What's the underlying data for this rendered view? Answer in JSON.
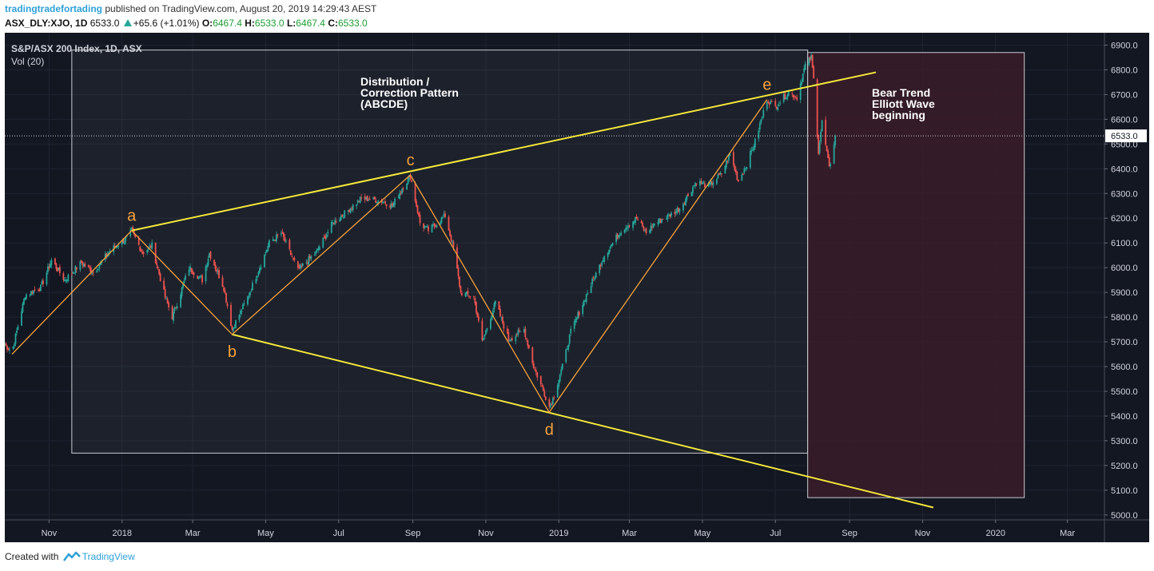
{
  "header": {
    "author": "tradingtradefortading",
    "published": "published on TradingView.com, August 20, 2019 14:29:43 AEST",
    "symbol": "ASX_DLY:XJO, 1D",
    "last": "6533.0",
    "change": "+65.6 (+1.01%)",
    "o_label": "O:",
    "o_value": "6467.4",
    "h_label": "H:",
    "h_value": "6533.0",
    "l_label": "L:",
    "l_value": "6467.4",
    "c_label": "C:",
    "c_value": "6533.0"
  },
  "footer": {
    "created_with": "Created with",
    "brand": "TradingView"
  },
  "chart_data": {
    "type": "candlestick",
    "title": "S&P/ASX 200 Index, 1D, ASX",
    "subtitle": "Vol (20)",
    "ylim": [
      4980,
      6950
    ],
    "yticks": [
      5000,
      5100,
      5200,
      5300,
      5400,
      5500,
      5600,
      5700,
      5800,
      5900,
      6000,
      6100,
      6200,
      6300,
      6400,
      6500,
      6600,
      6700,
      6800,
      6900
    ],
    "ytick_labels": [
      "5000.0",
      "5100.0",
      "5200.0",
      "5300.0",
      "5400.0",
      "5500.0",
      "5600.0",
      "5700.0",
      "5800.0",
      "5900.0",
      "6000.0",
      "6100.0",
      "6200.0",
      "6300.0",
      "6400.0",
      "6500.0",
      "6600.0",
      "6700.0",
      "6800.0",
      "6900.0"
    ],
    "xlim": [
      "2017-09-25",
      "2020-04-01"
    ],
    "xticks": [
      {
        "date": "2017-11-01",
        "label": "Nov"
      },
      {
        "date": "2018-01-01",
        "label": "2018"
      },
      {
        "date": "2018-03-01",
        "label": "Mar"
      },
      {
        "date": "2018-05-01",
        "label": "May"
      },
      {
        "date": "2018-07-01",
        "label": "Jul"
      },
      {
        "date": "2018-09-01",
        "label": "Sep"
      },
      {
        "date": "2018-11-01",
        "label": "Nov"
      },
      {
        "date": "2019-01-01",
        "label": "2019"
      },
      {
        "date": "2019-03-01",
        "label": "Mar"
      },
      {
        "date": "2019-05-01",
        "label": "May"
      },
      {
        "date": "2019-07-01",
        "label": "Jul"
      },
      {
        "date": "2019-09-01",
        "label": "Sep"
      },
      {
        "date": "2019-11-01",
        "label": "Nov"
      },
      {
        "date": "2020-01-01",
        "label": "2020"
      },
      {
        "date": "2020-03-01",
        "label": "Mar"
      }
    ],
    "path": [
      [
        "2017-09-25",
        5690
      ],
      [
        "2017-10-01",
        5660
      ],
      [
        "2017-10-12",
        5890
      ],
      [
        "2017-10-25",
        5920
      ],
      [
        "2017-11-03",
        6030
      ],
      [
        "2017-11-14",
        5950
      ],
      [
        "2017-11-28",
        6020
      ],
      [
        "2017-12-08",
        5980
      ],
      [
        "2017-12-22",
        6070
      ],
      [
        "2018-01-05",
        6120
      ],
      [
        "2018-01-09",
        6150
      ],
      [
        "2018-01-18",
        6060
      ],
      [
        "2018-01-26",
        6090
      ],
      [
        "2018-02-06",
        5880
      ],
      [
        "2018-02-12",
        5800
      ],
      [
        "2018-02-26",
        6000
      ],
      [
        "2018-03-09",
        5950
      ],
      [
        "2018-03-15",
        6060
      ],
      [
        "2018-03-27",
        5920
      ],
      [
        "2018-04-03",
        5750
      ],
      [
        "2018-04-16",
        5880
      ],
      [
        "2018-05-04",
        6100
      ],
      [
        "2018-05-14",
        6140
      ],
      [
        "2018-05-28",
        5990
      ],
      [
        "2018-06-12",
        6060
      ],
      [
        "2018-06-26",
        6180
      ],
      [
        "2018-07-06",
        6220
      ],
      [
        "2018-07-20",
        6280
      ],
      [
        "2018-08-06",
        6270
      ],
      [
        "2018-08-15",
        6250
      ],
      [
        "2018-08-24",
        6330
      ],
      [
        "2018-08-30",
        6370
      ],
      [
        "2018-09-07",
        6180
      ],
      [
        "2018-09-14",
        6150
      ],
      [
        "2018-09-28",
        6210
      ],
      [
        "2018-10-05",
        6080
      ],
      [
        "2018-10-11",
        5900
      ],
      [
        "2018-10-22",
        5880
      ],
      [
        "2018-10-29",
        5700
      ],
      [
        "2018-11-09",
        5860
      ],
      [
        "2018-11-20",
        5710
      ],
      [
        "2018-12-03",
        5750
      ],
      [
        "2018-12-11",
        5600
      ],
      [
        "2018-12-24",
        5440
      ],
      [
        "2018-12-27",
        5470
      ],
      [
        "2019-01-04",
        5600
      ],
      [
        "2019-01-11",
        5740
      ],
      [
        "2019-01-25",
        5900
      ],
      [
        "2019-02-08",
        6050
      ],
      [
        "2019-02-22",
        6150
      ],
      [
        "2019-03-07",
        6200
      ],
      [
        "2019-03-15",
        6140
      ],
      [
        "2019-03-22",
        6180
      ],
      [
        "2019-04-03",
        6210
      ],
      [
        "2019-04-12",
        6240
      ],
      [
        "2019-04-26",
        6350
      ],
      [
        "2019-05-06",
        6330
      ],
      [
        "2019-05-17",
        6380
      ],
      [
        "2019-05-24",
        6460
      ],
      [
        "2019-05-31",
        6350
      ],
      [
        "2019-06-07",
        6420
      ],
      [
        "2019-06-14",
        6510
      ],
      [
        "2019-06-24",
        6680
      ],
      [
        "2019-07-01",
        6650
      ],
      [
        "2019-07-12",
        6710
      ],
      [
        "2019-07-19",
        6690
      ],
      [
        "2019-07-26",
        6820
      ],
      [
        "2019-07-31",
        6850
      ],
      [
        "2019-08-02",
        6760
      ],
      [
        "2019-08-06",
        6470
      ],
      [
        "2019-08-09",
        6590
      ],
      [
        "2019-08-15",
        6400
      ],
      [
        "2019-08-20",
        6533
      ]
    ],
    "last_price": {
      "value": 6533.0,
      "label": "6533.0"
    },
    "annotations": {
      "pattern_label": [
        "Distribution /",
        "Correction Pattern",
        "(ABCDE)"
      ],
      "bear_label": [
        "Bear Trend",
        "Elliott Wave",
        "beginning"
      ],
      "points": [
        {
          "label": "a",
          "date": "2018-01-09",
          "value": 6150
        },
        {
          "label": "b",
          "date": "2018-04-03",
          "value": 5730
        },
        {
          "label": "c",
          "date": "2018-08-30",
          "value": 6375
        },
        {
          "label": "d",
          "date": "2018-12-24",
          "value": 5415
        },
        {
          "label": "e",
          "date": "2019-06-24",
          "value": 6680
        }
      ],
      "zigzag": [
        [
          "2017-10-01",
          5650
        ],
        [
          "2018-01-09",
          6150
        ],
        [
          "2018-04-03",
          5730
        ],
        [
          "2018-08-30",
          6375
        ],
        [
          "2018-12-24",
          5415
        ],
        [
          "2019-06-24",
          6680
        ]
      ],
      "upper_trendline": [
        [
          "2018-01-09",
          6150
        ],
        [
          "2019-09-23",
          6790
        ]
      ],
      "lower_trendline": [
        [
          "2018-04-03",
          5730
        ],
        [
          "2019-11-10",
          5030
        ]
      ],
      "pattern_box": {
        "start": "2017-11-20",
        "end": "2019-07-28",
        "top": 6880,
        "bottom": 5250
      },
      "bear_box": {
        "start": "2019-07-28",
        "end": "2020-01-25",
        "top": 6870,
        "bottom": 5070
      }
    },
    "colors": {
      "background": "#131722",
      "up": "#26a69a",
      "down": "#ef5350",
      "trendline": "#f5e83b",
      "zigzag": "#f7a23b",
      "label": "#f7a23b",
      "text": "#d1d4dc",
      "bear_box": "#3a1c28"
    }
  }
}
